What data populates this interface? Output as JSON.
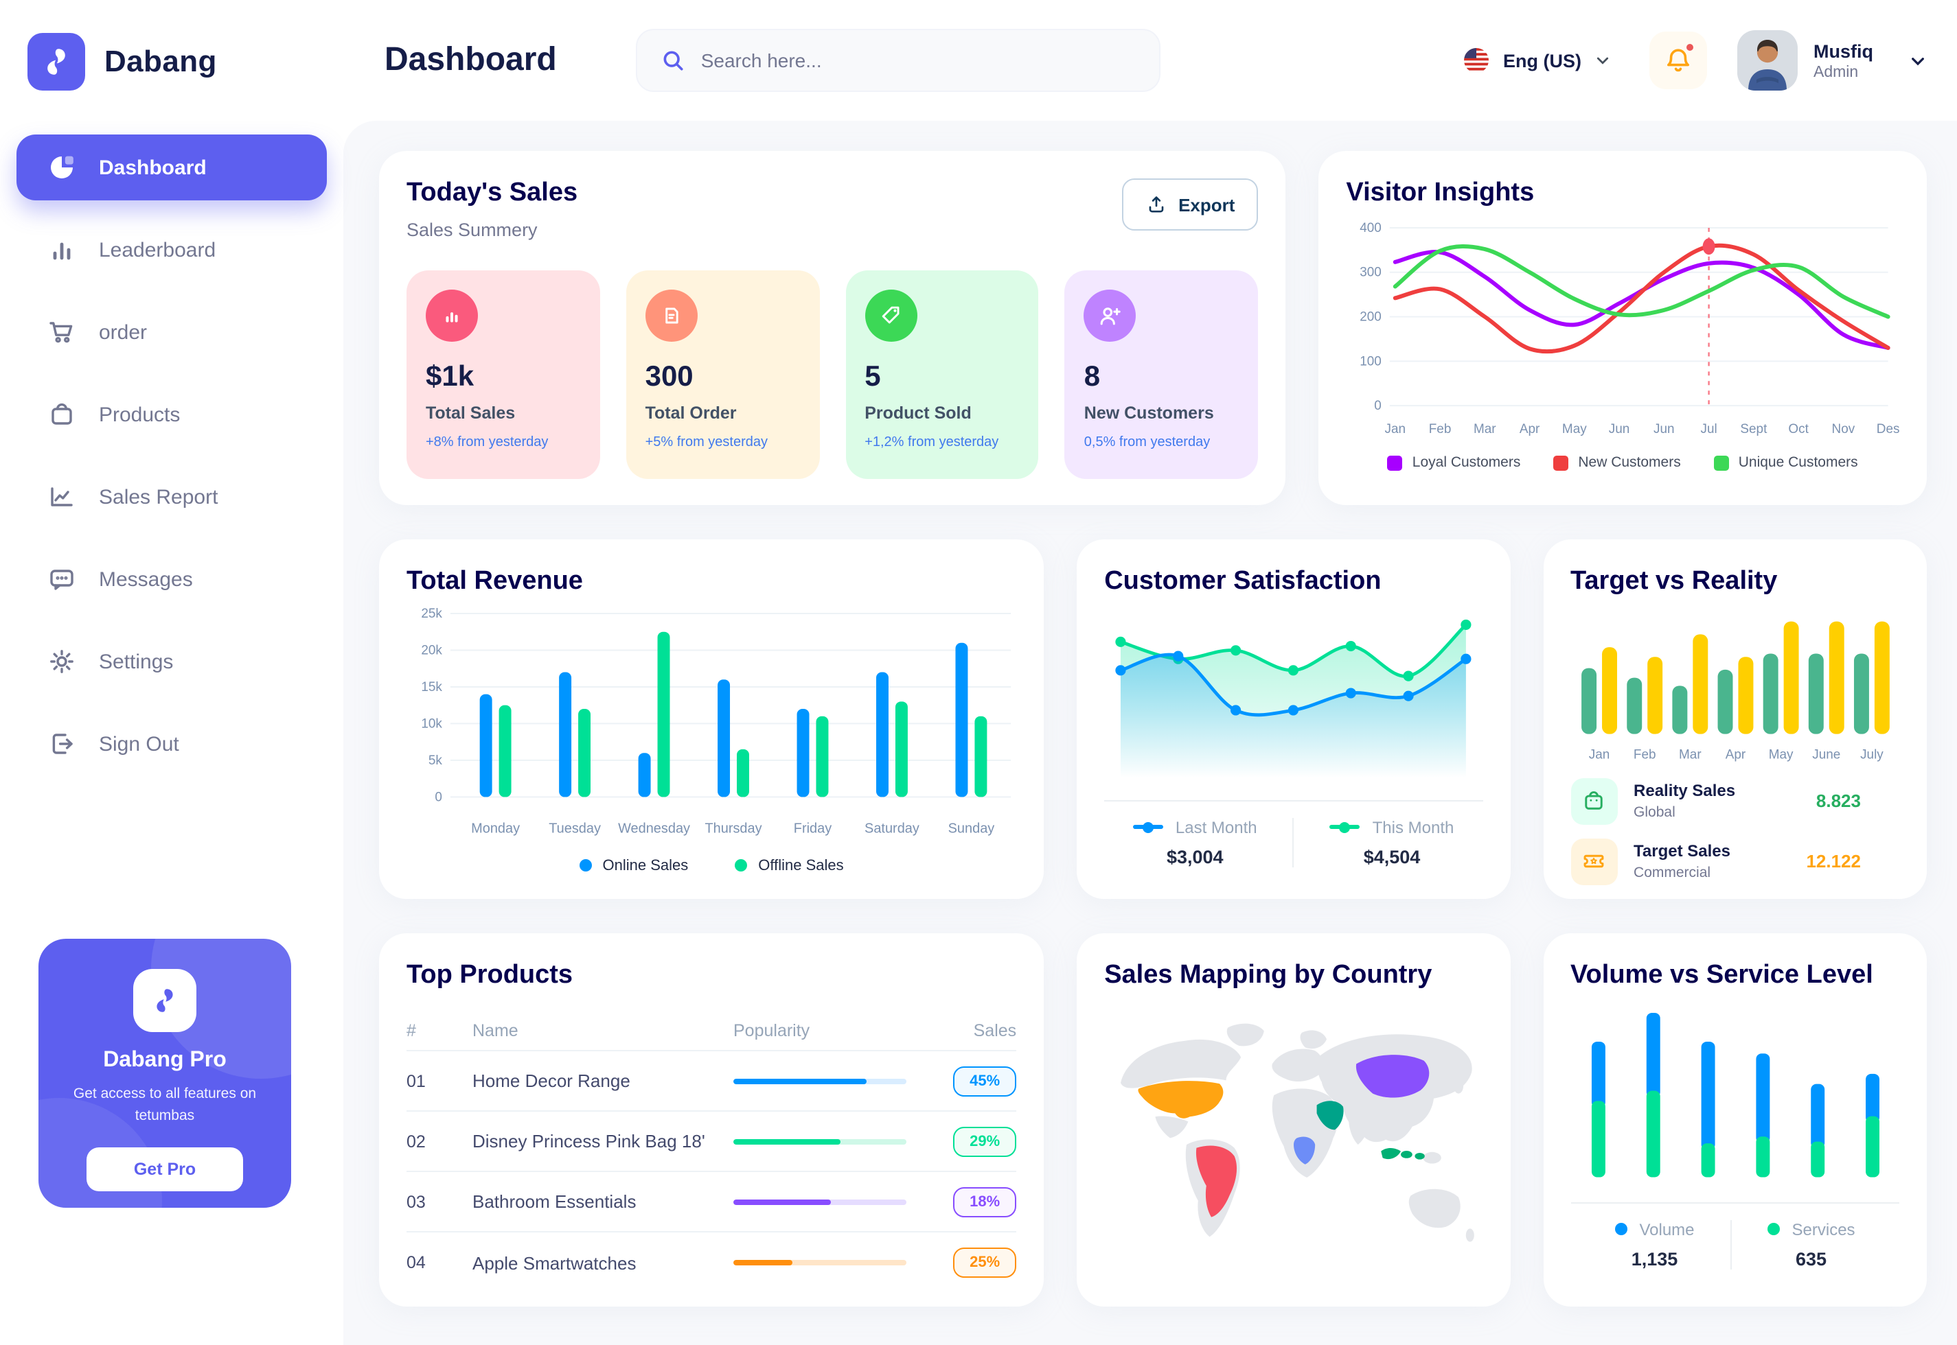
{
  "header": {
    "title": "Dashboard",
    "search_placeholder": "Search here...",
    "language": "Eng (US)",
    "user_name": "Musfiq",
    "user_role": "Admin"
  },
  "sidebar": {
    "brand": "Dabang",
    "items": [
      {
        "label": "Dashboard",
        "icon": "pie-chart-icon",
        "active": true
      },
      {
        "label": "Leaderboard",
        "icon": "bar-chart-icon",
        "active": false
      },
      {
        "label": "order",
        "icon": "cart-icon",
        "active": false
      },
      {
        "label": "Products",
        "icon": "bag-icon",
        "active": false
      },
      {
        "label": "Sales Report",
        "icon": "line-chart-icon",
        "active": false
      },
      {
        "label": "Messages",
        "icon": "chat-icon",
        "active": false
      },
      {
        "label": "Settings",
        "icon": "gear-icon",
        "active": false
      },
      {
        "label": "Sign Out",
        "icon": "sign-out-icon",
        "active": false
      }
    ],
    "pro": {
      "title": "Dabang Pro",
      "text": "Get access to all features on tetumbas",
      "button": "Get Pro"
    }
  },
  "today_sales": {
    "title": "Today's Sales",
    "subtitle": "Sales Summery",
    "export_label": "Export",
    "cards": [
      {
        "value": "$1k",
        "label": "Total Sales",
        "delta": "+8% from yesterday",
        "bg": "#FFE2E5",
        "icon_bg": "#FA5A7D",
        "icon": "chart-bars-icon"
      },
      {
        "value": "300",
        "label": "Total Order",
        "delta": "+5% from yesterday",
        "bg": "#FFF4DE",
        "icon_bg": "#FF947A",
        "icon": "receipt-icon"
      },
      {
        "value": "5",
        "label": "Product Sold",
        "delta": "+1,2% from yesterday",
        "bg": "#DCFCE7",
        "icon_bg": "#3CD856",
        "icon": "tag-icon"
      },
      {
        "value": "8",
        "label": "New Customers",
        "delta": "0,5% from yesterday",
        "bg": "#F3E8FF",
        "icon_bg": "#BF83FF",
        "icon": "user-plus-icon"
      }
    ]
  },
  "top_products": {
    "title": "Top Products",
    "headers": [
      "#",
      "Name",
      "Popularity",
      "Sales"
    ],
    "rows": [
      {
        "num": "01",
        "name": "Home Decor Range",
        "popularity": 77,
        "color": "#0095FF",
        "track": "#D9EDFF",
        "badge": "45%",
        "badge_bg": "#F0F9FF"
      },
      {
        "num": "02",
        "name": "Disney Princess Pink Bag 18'",
        "popularity": 62,
        "color": "#00E096",
        "track": "#CFF8E8",
        "badge": "29%",
        "badge_bg": "#F0FDF7"
      },
      {
        "num": "03",
        "name": "Bathroom Essentials",
        "popularity": 56,
        "color": "#884DFF",
        "track": "#E5DCFF",
        "badge": "18%",
        "badge_bg": "#FAF5FF"
      },
      {
        "num": "04",
        "name": "Apple Smartwatches",
        "popularity": 34,
        "color": "#FF8F0D",
        "track": "#FFE5C8",
        "badge": "25%",
        "badge_bg": "#FFF8EE"
      }
    ]
  },
  "chart_data": [
    {
      "type": "line",
      "title": "Visitor Insights",
      "x": [
        "Jan",
        "Feb",
        "Mar",
        "Apr",
        "May",
        "Jun",
        "Jun",
        "Jul",
        "Sept",
        "Oct",
        "Nov",
        "Des"
      ],
      "ylim": [
        0,
        400
      ],
      "yticks": [
        0,
        100,
        200,
        300,
        400
      ],
      "grid": true,
      "legend_position": "bottom",
      "series": [
        {
          "name": "Loyal Customers",
          "color": "#A700FF",
          "values": [
            323,
            345,
            290,
            215,
            182,
            230,
            285,
            320,
            310,
            250,
            160,
            130
          ]
        },
        {
          "name": "New Customers",
          "color": "#EF3E3E",
          "values": [
            242,
            262,
            200,
            128,
            135,
            210,
            300,
            358,
            340,
            260,
            190,
            130
          ]
        },
        {
          "name": "Unique Customers",
          "color": "#3CD856",
          "values": [
            268,
            348,
            352,
            300,
            240,
            205,
            215,
            258,
            305,
            312,
            245,
            200
          ]
        }
      ],
      "annotation": {
        "x_index": 7,
        "x_label": "Jul",
        "series": "New Customers",
        "value": 358,
        "marker": "red-dot-dashed-line"
      }
    },
    {
      "type": "bar",
      "title": "Total Revenue",
      "categories": [
        "Monday",
        "Tuesday",
        "Wednesday",
        "Thursday",
        "Friday",
        "Saturday",
        "Sunday"
      ],
      "ylim": [
        0,
        25
      ],
      "yticks": [
        0,
        5,
        10,
        15,
        20,
        25
      ],
      "ytick_labels": [
        "0",
        "5k",
        "10k",
        "15k",
        "20k",
        "25k"
      ],
      "grid": true,
      "legend_position": "bottom",
      "series": [
        {
          "name": "Online Sales",
          "color": "#0095FF",
          "values": [
            14,
            17,
            6,
            16,
            12,
            17,
            21
          ]
        },
        {
          "name": "Offline Sales",
          "color": "#00E096",
          "values": [
            12.5,
            12,
            22.5,
            6.5,
            11,
            13,
            11
          ]
        }
      ]
    },
    {
      "type": "area",
      "title": "Customer Satisfaction",
      "x": [
        1,
        2,
        3,
        4,
        5,
        6,
        7
      ],
      "ylim": [
        0,
        100
      ],
      "grid": false,
      "legend_position": "bottom",
      "series": [
        {
          "name": "Last Month",
          "color": "#0095FF",
          "values": [
            62,
            72,
            34,
            34,
            46,
            44,
            70
          ],
          "total_label": "$3,004"
        },
        {
          "name": "This Month",
          "color": "#00E096",
          "values": [
            82,
            70,
            76,
            62,
            79,
            58,
            94
          ],
          "total_label": "$4,504"
        }
      ]
    },
    {
      "type": "bar",
      "title": "Target vs Reality",
      "categories": [
        "Jan",
        "Feb",
        "Mar",
        "Apr",
        "May",
        "June",
        "July"
      ],
      "ylim": [
        0,
        15
      ],
      "grid": false,
      "series": [
        {
          "name": "Reality Sales",
          "color": "#4AB58E",
          "values": [
            8.2,
            7,
            6,
            8,
            10,
            10,
            10
          ]
        },
        {
          "name": "Target Sales",
          "color": "#FFCF00",
          "values": [
            10.8,
            9.6,
            12.4,
            9.6,
            14,
            14,
            14
          ]
        }
      ],
      "legend": [
        {
          "label": "Reality Sales",
          "sub": "Global",
          "value": "8.823",
          "value_color": "#27AE60",
          "icon": "bag-small-icon",
          "icon_bg": "#E2FFF3",
          "icon_color": "#27AE60"
        },
        {
          "label": "Target Sales",
          "sub": "Commercial",
          "value": "12.122",
          "value_color": "#FFA412",
          "icon": "ticket-icon",
          "icon_bg": "#FFF4DE",
          "icon_color": "#FFA412"
        }
      ]
    },
    {
      "type": "map",
      "title": "Sales Mapping by Country",
      "base_color": "#E4E6EA",
      "countries": [
        {
          "key": "usa",
          "name": "United States",
          "color": "#FFA412"
        },
        {
          "key": "brazil",
          "name": "Brazil",
          "color": "#F64E60"
        },
        {
          "key": "saudi",
          "name": "Saudi Arabia",
          "color": "#00A389"
        },
        {
          "key": "congo",
          "name": "Congo",
          "color": "#6D8DF7"
        },
        {
          "key": "china",
          "name": "China",
          "color": "#8950FC"
        },
        {
          "key": "indonesia",
          "name": "Indonesia",
          "color": "#00B074"
        }
      ]
    },
    {
      "type": "stacked-bar",
      "title": "Volume vs Service Level",
      "categories": [
        "",
        "",
        "",
        "",
        "",
        ""
      ],
      "grid": false,
      "legend_position": "bottom",
      "series": [
        {
          "name": "Volume",
          "color": "#0095FF",
          "values": [
            350,
            460,
            600,
            490,
            340,
            250
          ],
          "total_label": "1,135"
        },
        {
          "name": "Services",
          "color": "#00E096",
          "values": [
            450,
            510,
            200,
            240,
            210,
            360
          ],
          "total_label": "635"
        }
      ]
    }
  ]
}
